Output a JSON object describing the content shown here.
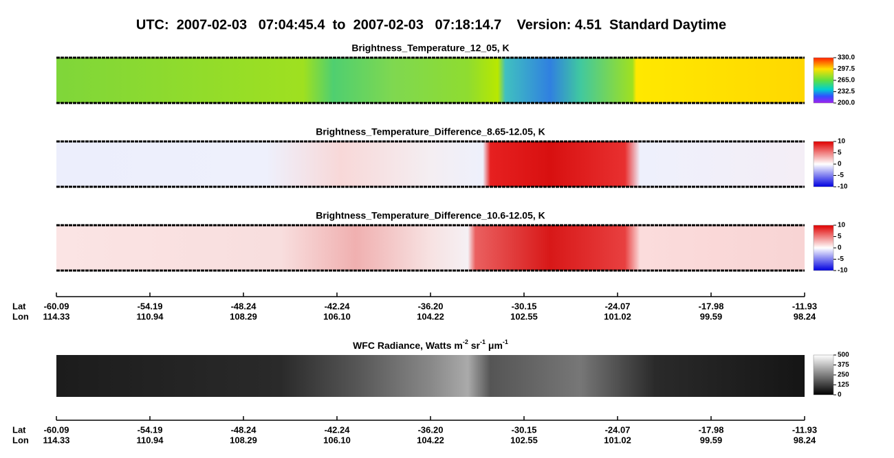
{
  "header": {
    "title": "UTC:  2007-02-03   07:04:45.4  to  2007-02-03   07:18:14.7    Version: 4.51  Standard Daytime"
  },
  "panels": [
    {
      "title": "Brightness_Temperature_12_05, K",
      "colorbar": [
        "330.0",
        "297.5",
        "265.0",
        "232.5",
        "200.0"
      ]
    },
    {
      "title": "Brightness_Temperature_Difference_8.65-12.05, K",
      "colorbar": [
        "10",
        "5",
        "0",
        "-5",
        "-10"
      ]
    },
    {
      "title": "Brightness_Temperature_Difference_10.6-12.05, K",
      "colorbar": [
        "10",
        "5",
        "0",
        "-5",
        "-10"
      ]
    }
  ],
  "wfc": {
    "title_parts": [
      "WFC Radiance, Watts m",
      "-2",
      " sr",
      "-1",
      " μm",
      "-1"
    ],
    "colorbar": [
      "500",
      "375",
      "250",
      "125",
      "0"
    ]
  },
  "axes": [
    {
      "lat_label": "Lat",
      "lon_label": "Lon",
      "lat": [
        "-60.09",
        "-54.19",
        "-48.24",
        "-42.24",
        "-36.20",
        "-30.15",
        "-24.07",
        "-17.98",
        "-11.93"
      ],
      "lon": [
        "114.33",
        "110.94",
        "108.29",
        "106.10",
        "104.22",
        "102.55",
        "101.02",
        "99.59",
        "98.24"
      ]
    },
    {
      "lat_label": "Lat",
      "lon_label": "Lon",
      "lat": [
        "-60.09",
        "-54.19",
        "-48.24",
        "-42.24",
        "-36.20",
        "-30.15",
        "-24.07",
        "-17.98",
        "-11.93"
      ],
      "lon": [
        "114.33",
        "110.94",
        "108.29",
        "106.10",
        "104.22",
        "102.55",
        "101.02",
        "99.59",
        "98.24"
      ]
    }
  ]
}
